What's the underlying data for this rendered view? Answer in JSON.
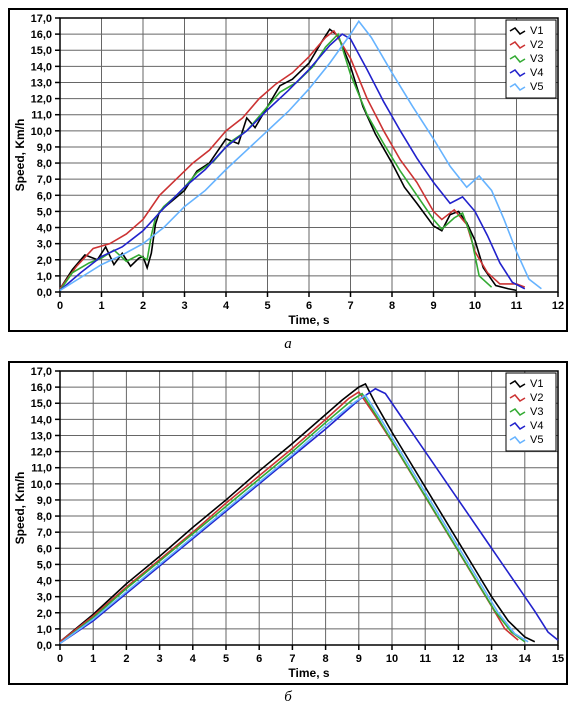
{
  "chartA": {
    "type": "line",
    "sublabel": "a",
    "xlabel": "Time, s",
    "ylabel": "Speed, Km/h",
    "xlim": [
      0,
      12
    ],
    "xtick_step": 1,
    "ylim": [
      0,
      17
    ],
    "ytick_step": 1,
    "tick_decimals_y": 1,
    "label_fontsize": 12,
    "tick_fontsize": 11,
    "background_color": "#ffffff",
    "grid_color": "#666666",
    "border_color": "#000000",
    "legend_position": "top-right",
    "series": [
      {
        "name": "V1",
        "label": "V1",
        "color": "#000000",
        "x": [
          0,
          0.3,
          0.6,
          0.9,
          1.1,
          1.3,
          1.5,
          1.7,
          1.9,
          2.0,
          2.1,
          2.2,
          2.3,
          2.4,
          3.0,
          3.3,
          3.6,
          4.0,
          4.3,
          4.5,
          4.7,
          5.0,
          5.3,
          5.6,
          6.0,
          6.3,
          6.5,
          6.7,
          7.0,
          7.3,
          7.6,
          8.0,
          8.3,
          8.6,
          9.0,
          9.2,
          9.4,
          9.6,
          9.8,
          10.0,
          10.2,
          10.5,
          10.8,
          11.0
        ],
        "y": [
          0.2,
          1.4,
          2.3,
          2.0,
          2.8,
          1.7,
          2.4,
          1.6,
          2.1,
          2.2,
          1.5,
          2.4,
          4.2,
          5.0,
          6.3,
          7.5,
          8.0,
          9.5,
          9.2,
          10.8,
          10.2,
          11.5,
          12.8,
          13.2,
          14.2,
          15.5,
          16.3,
          15.9,
          14.0,
          11.5,
          9.8,
          8.0,
          6.5,
          5.5,
          4.1,
          3.8,
          4.8,
          5.0,
          4.3,
          3.2,
          1.5,
          0.4,
          0.2,
          0.1
        ]
      },
      {
        "name": "V2",
        "label": "V2",
        "color": "#cc3333",
        "x": [
          0,
          0.4,
          0.8,
          1.2,
          1.6,
          2.0,
          2.4,
          2.8,
          3.2,
          3.6,
          4.0,
          4.4,
          4.8,
          5.2,
          5.6,
          6.0,
          6.4,
          6.6,
          7.0,
          7.4,
          7.8,
          8.2,
          8.6,
          9.0,
          9.2,
          9.5,
          9.8,
          10.0,
          10.3,
          10.6,
          11.0,
          11.2
        ],
        "y": [
          0.2,
          1.6,
          2.7,
          3.0,
          3.6,
          4.5,
          6.0,
          7.0,
          8.0,
          8.8,
          10.0,
          10.8,
          12.0,
          12.9,
          13.6,
          14.6,
          15.8,
          16.2,
          14.5,
          12.0,
          10.0,
          8.2,
          6.8,
          5.0,
          4.5,
          5.1,
          4.2,
          2.5,
          1.2,
          0.5,
          0.5,
          0.3
        ]
      },
      {
        "name": "V3",
        "label": "V3",
        "color": "#33aa33",
        "x": [
          0,
          0.3,
          0.7,
          1.0,
          1.3,
          1.6,
          1.9,
          2.1,
          2.2,
          2.3,
          2.5,
          2.9,
          3.3,
          3.7,
          4.1,
          4.5,
          4.9,
          5.3,
          5.7,
          6.1,
          6.4,
          6.7,
          7.0,
          7.4,
          7.8,
          8.2,
          8.6,
          9.0,
          9.2,
          9.5,
          9.7,
          9.9,
          10.1,
          10.4
        ],
        "y": [
          0.1,
          1.2,
          1.8,
          2.1,
          2.6,
          1.9,
          2.3,
          2.0,
          3.5,
          4.6,
          5.3,
          6.2,
          7.4,
          8.1,
          9.3,
          10.0,
          11.2,
          12.4,
          13.0,
          14.0,
          15.2,
          16.0,
          13.5,
          11.0,
          9.2,
          7.5,
          6.0,
          4.5,
          3.9,
          4.6,
          4.9,
          3.5,
          1.0,
          0.3
        ]
      },
      {
        "name": "V4",
        "label": "V4",
        "color": "#2222cc",
        "x": [
          0,
          0.5,
          1.0,
          1.5,
          2.0,
          2.5,
          3.0,
          3.5,
          4.0,
          4.5,
          5.0,
          5.5,
          6.0,
          6.5,
          6.8,
          7.0,
          7.4,
          7.8,
          8.2,
          8.6,
          9.0,
          9.4,
          9.7,
          10.0,
          10.3,
          10.6,
          10.9,
          11.2
        ],
        "y": [
          0.1,
          1.2,
          2.2,
          2.8,
          3.8,
          5.2,
          6.5,
          7.6,
          9.0,
          10.0,
          11.3,
          12.5,
          13.8,
          15.3,
          16.0,
          15.7,
          13.8,
          11.8,
          10.0,
          8.3,
          6.8,
          5.5,
          5.9,
          5.0,
          3.5,
          1.8,
          0.6,
          0.2
        ]
      },
      {
        "name": "V5",
        "label": "V5",
        "color": "#66b3ff",
        "x": [
          0,
          0.5,
          1.0,
          1.5,
          2.0,
          2.5,
          3.0,
          3.5,
          4.0,
          4.5,
          5.0,
          5.5,
          6.0,
          6.5,
          7.0,
          7.2,
          7.5,
          8.0,
          8.5,
          9.0,
          9.4,
          9.8,
          10.1,
          10.4,
          10.7,
          11.0,
          11.3,
          11.6
        ],
        "y": [
          0.1,
          0.9,
          1.7,
          2.3,
          3.0,
          4.0,
          5.3,
          6.3,
          7.6,
          8.8,
          10.0,
          11.2,
          12.6,
          14.2,
          16.0,
          16.8,
          15.8,
          13.6,
          11.5,
          9.5,
          7.8,
          6.5,
          7.2,
          6.3,
          4.5,
          2.5,
          0.8,
          0.2
        ]
      }
    ]
  },
  "chartB": {
    "type": "line",
    "sublabel": "б",
    "xlabel": "Time, s",
    "ylabel": "Speed, Km/h",
    "xlim": [
      0,
      15
    ],
    "xtick_step": 1,
    "ylim": [
      0,
      17
    ],
    "ytick_step": 1,
    "tick_decimals_y": 1,
    "label_fontsize": 12,
    "tick_fontsize": 11,
    "background_color": "#ffffff",
    "grid_color": "#666666",
    "border_color": "#000000",
    "legend_position": "top-right",
    "series": [
      {
        "name": "V1",
        "label": "V1",
        "color": "#000000",
        "x": [
          0,
          1,
          2,
          3,
          4,
          5,
          6,
          7,
          8,
          8.5,
          9.0,
          9.2,
          9.5,
          10,
          10.5,
          11,
          11.5,
          12,
          12.5,
          13,
          13.5,
          14,
          14.3
        ],
        "y": [
          0.2,
          1.9,
          3.8,
          5.5,
          7.3,
          9.0,
          10.8,
          12.5,
          14.3,
          15.2,
          16.0,
          16.2,
          15.0,
          13.2,
          11.5,
          9.8,
          8.1,
          6.4,
          4.7,
          3.0,
          1.5,
          0.5,
          0.2
        ]
      },
      {
        "name": "V2",
        "label": "V2",
        "color": "#cc3333",
        "x": [
          0,
          1,
          2,
          3,
          4,
          5,
          6,
          7,
          8,
          8.7,
          9.0,
          9.5,
          10,
          10.5,
          11,
          11.5,
          12,
          12.5,
          13,
          13.4,
          13.8
        ],
        "y": [
          0.2,
          1.8,
          3.6,
          5.3,
          7.0,
          8.8,
          10.5,
          12.2,
          14.0,
          15.3,
          15.7,
          14.2,
          12.6,
          10.9,
          9.2,
          7.5,
          5.8,
          4.1,
          2.4,
          1.0,
          0.3
        ]
      },
      {
        "name": "V3",
        "label": "V3",
        "color": "#33aa33",
        "x": [
          0,
          1,
          2,
          3,
          4,
          5,
          6,
          7,
          8,
          8.8,
          9.1,
          9.6,
          10.1,
          10.6,
          11.1,
          11.6,
          12.1,
          12.6,
          13.1,
          13.6,
          14.0
        ],
        "y": [
          0.1,
          1.7,
          3.5,
          5.2,
          6.9,
          8.6,
          10.3,
          12.0,
          13.8,
          15.2,
          15.6,
          14.0,
          12.3,
          10.6,
          8.9,
          7.2,
          5.5,
          3.8,
          2.1,
          0.8,
          0.2
        ]
      },
      {
        "name": "V4",
        "label": "V4",
        "color": "#2222cc",
        "x": [
          0,
          1,
          2,
          3,
          4,
          5,
          6,
          7,
          8,
          9,
          9.5,
          9.8,
          10.3,
          10.8,
          11.3,
          11.8,
          12.3,
          12.8,
          13.3,
          13.8,
          14.3,
          14.7,
          15.0
        ],
        "y": [
          0.1,
          1.5,
          3.2,
          4.9,
          6.6,
          8.3,
          10.0,
          11.7,
          13.4,
          15.2,
          15.9,
          15.6,
          14.1,
          12.6,
          11.1,
          9.6,
          8.1,
          6.6,
          5.1,
          3.6,
          2.1,
          0.8,
          0.3
        ]
      },
      {
        "name": "V5",
        "label": "V5",
        "color": "#66b3ff",
        "x": [
          0,
          1,
          2,
          3,
          4,
          5,
          6,
          7,
          8,
          8.9,
          9.2,
          9.7,
          10.2,
          10.7,
          11.2,
          11.7,
          12.2,
          12.7,
          13.2,
          13.7,
          14.1
        ],
        "y": [
          0.1,
          1.6,
          3.3,
          5.0,
          6.7,
          8.4,
          10.1,
          11.8,
          13.6,
          15.1,
          15.5,
          13.9,
          12.2,
          10.5,
          8.8,
          7.1,
          5.4,
          3.7,
          2.0,
          0.7,
          0.2
        ]
      }
    ]
  }
}
